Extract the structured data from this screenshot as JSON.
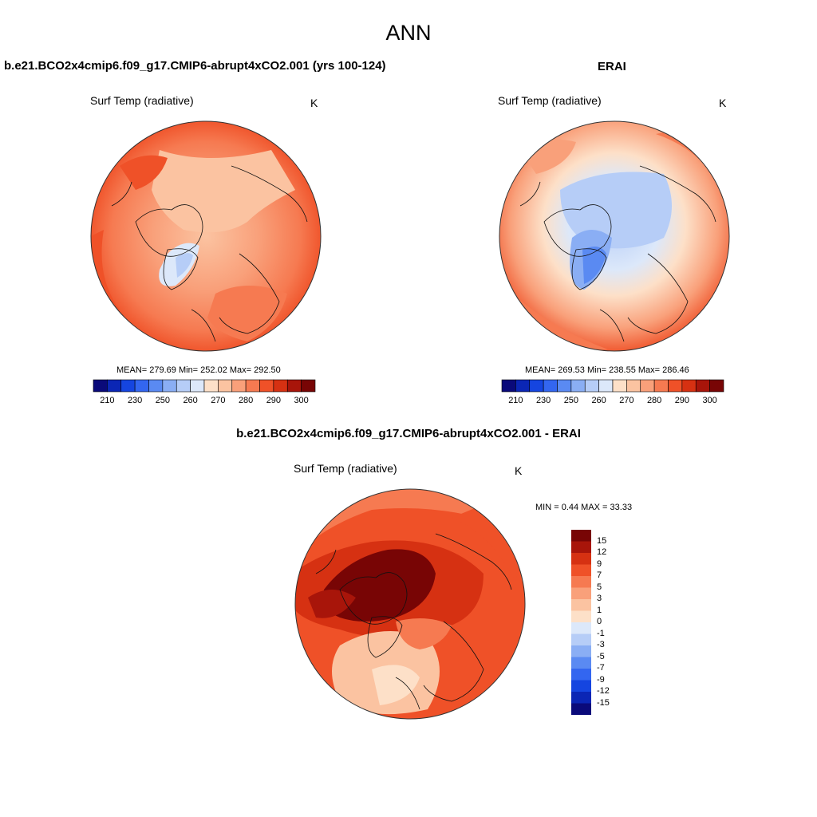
{
  "figure": {
    "title": "ANN"
  },
  "panels": {
    "model": {
      "title": "b.e21.BCO2x4cmip6.f09_g17.CMIP6-abrupt4xCO2.001 (yrs 100-124)",
      "variable": "Surf Temp (radiative)",
      "units": "K",
      "stats": "MEAN= 279.69  Min= 252.02  Max= 292.50"
    },
    "obs": {
      "title": "ERAI",
      "variable": "Surf Temp (radiative)",
      "units": "K",
      "stats": "MEAN= 269.53  Min= 238.55  Max= 286.46"
    },
    "diff": {
      "title": "b.e21.BCO2x4cmip6.f09_g17.CMIP6-abrupt4xCO2.001 - ERAI",
      "variable": "Surf Temp (radiative)",
      "units": "K",
      "stats": "MIN =   0.44 MAX =  33.33"
    }
  },
  "colorbars": {
    "absolute": {
      "colors": [
        "#0a0a7a",
        "#0b26b5",
        "#1545e0",
        "#3366f0",
        "#5a8af2",
        "#8aaef4",
        "#b6cdf7",
        "#dce8fa",
        "#fde0c8",
        "#fbc3a1",
        "#f9a07a",
        "#f67a51",
        "#ef5128",
        "#d63112",
        "#a8150a",
        "#780505"
      ],
      "tick_labels": [
        "210",
        "230",
        "250",
        "260",
        "270",
        "280",
        "290",
        "300"
      ]
    },
    "difference": {
      "colors": [
        "#0a0a7a",
        "#0b26b5",
        "#1545e0",
        "#3366f0",
        "#5a8af2",
        "#8aaef4",
        "#b6cdf7",
        "#dce8fa",
        "#fde0c8",
        "#fbc3a1",
        "#f9a07a",
        "#f67a51",
        "#ef5128",
        "#d63112",
        "#a8150a",
        "#780505"
      ],
      "tick_labels": [
        "-15",
        "-12",
        "-9",
        "-7",
        "-5",
        "-3",
        "-1",
        "0",
        "1",
        "3",
        "5",
        "7",
        "9",
        "12",
        "15"
      ]
    }
  }
}
